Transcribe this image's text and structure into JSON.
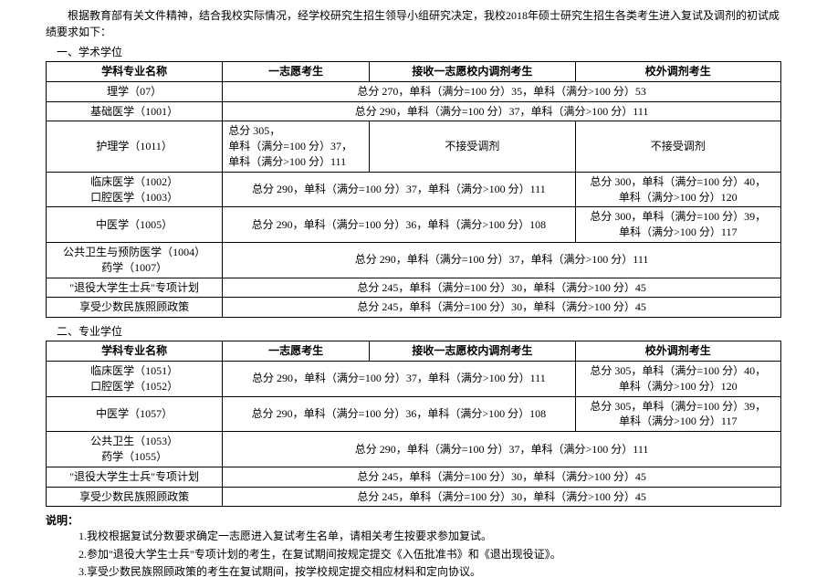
{
  "intro": "根据教育部有关文件精神，结合我校实际情况，经学校研究生招生领导小组研究决定，我校2018年硕士研究生招生各类考生进入复试及调剂的初试成绩要求如下：",
  "section1_title": "一、学术学位",
  "section2_title": "二、专业学位",
  "headers": {
    "name": "学科专业名称",
    "first": "一志愿考生",
    "transfer": "接收一志愿校内调剂考生",
    "external": "校外调剂考生"
  },
  "t1": {
    "r1": {
      "name": "理学（07）",
      "merged": "总分 270，单科（满分=100 分）35，单科（满分>100 分）53"
    },
    "r2": {
      "name": "基础医学（1001）",
      "merged": "总分 290，单科（满分=100 分）37，单科（满分>100 分）111"
    },
    "r3": {
      "name": "护理学（1011）",
      "first_l1": "总分 305，",
      "first_l2": "单科（满分=100 分）37，",
      "first_l3": "单科（满分>100 分）111",
      "transfer": "不接受调剂",
      "external": "不接受调剂"
    },
    "r4": {
      "name_l1": "临床医学（1002）",
      "name_l2": "口腔医学（1003）",
      "first_transfer": "总分 290，单科（满分=100 分）37，单科（满分>100 分）111",
      "external_l1": "总分 300，单科（满分=100 分）40，",
      "external_l2": "单科（满分>100 分）120"
    },
    "r5": {
      "name": "中医学（1005）",
      "first_transfer": "总分 290，单科（满分=100 分）36，单科（满分>100 分）108",
      "external_l1": "总分 300，单科（满分=100 分）39，",
      "external_l2": "单科（满分>100 分）117"
    },
    "r6": {
      "name_l1": "公共卫生与预防医学（1004）",
      "name_l2": "药学（1007）",
      "merged": "总分 290，单科（满分=100 分）37，单科（满分>100 分）111"
    },
    "r7": {
      "name": "\"退役大学生士兵\"专项计划",
      "merged": "总分 245，单科（满分=100 分）30，单科（满分>100 分）45"
    },
    "r8": {
      "name": "享受少数民族照顾政策",
      "merged": "总分 245，单科（满分=100 分）30，单科（满分>100 分）45"
    }
  },
  "t2": {
    "r1": {
      "name_l1": "临床医学（1051）",
      "name_l2": "口腔医学（1052）",
      "first_transfer": "总分 290，单科（满分=100 分）37，单科（满分>100 分）111",
      "external_l1": "总分 305，单科（满分=100 分）40，",
      "external_l2": "单科（满分>100 分）120"
    },
    "r2": {
      "name": "中医学（1057）",
      "first_transfer": "总分 290，单科（满分=100 分）36，单科（满分>100 分）108",
      "external_l1": "总分 305，单科（满分=100 分）39，",
      "external_l2": "单科（满分>100 分）117"
    },
    "r3": {
      "name_l1": "公共卫生（1053）",
      "name_l2": "药学（1055）",
      "merged": "总分 290，单科（满分=100 分）37，单科（满分>100 分）111"
    },
    "r4": {
      "name": "\"退役大学生士兵\"专项计划",
      "merged": "总分 245，单科（满分=100 分）30，单科（满分>100 分）45"
    },
    "r5": {
      "name": "享受少数民族照顾政策",
      "merged": "总分 245，单科（满分=100 分）30，单科（满分>100 分）45"
    }
  },
  "notes_label": "说明：",
  "notes": {
    "n1": "1.我校根据复试分数要求确定一志愿进入复试考生名单，请相关考生按要求参加复试。",
    "n2": "2.参加\"退役大学生士兵\"专项计划的考生，在复试期间按规定提交《入伍批准书》和《退出现役证》。",
    "n3": "3.享受少数民族照顾政策的考生在复试期间，按学校规定提交相应材料和定向协议。"
  }
}
